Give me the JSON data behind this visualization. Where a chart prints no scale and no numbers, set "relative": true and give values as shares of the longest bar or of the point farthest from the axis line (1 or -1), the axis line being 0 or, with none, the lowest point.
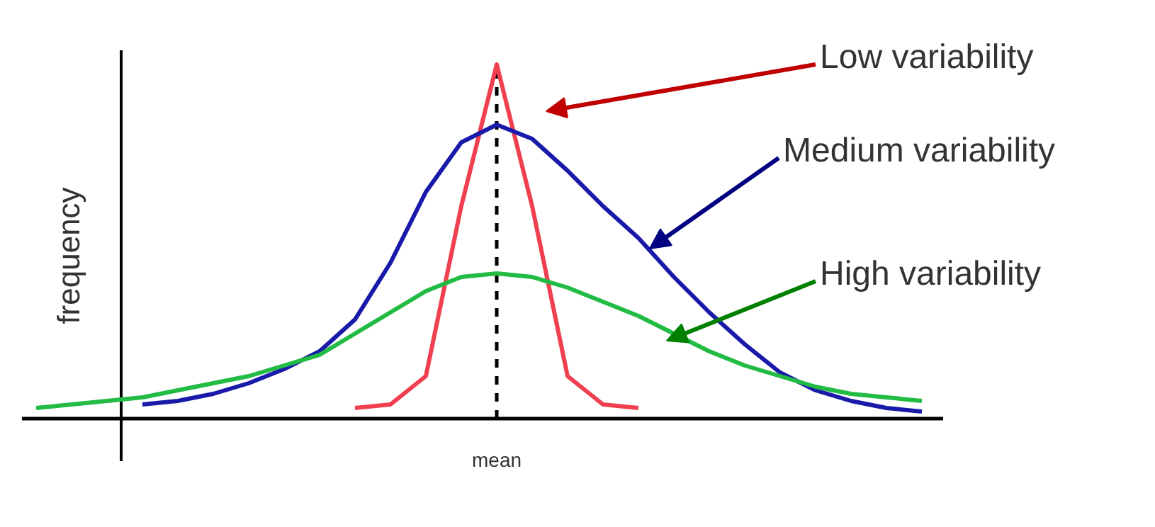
{
  "chart_data": {
    "type": "line",
    "relative": true,
    "ylabel": "frequency",
    "categories": [
      null,
      null,
      null,
      null,
      null,
      null,
      null,
      null,
      null,
      null,
      null,
      null,
      null,
      null,
      null,
      null,
      null,
      null,
      null,
      null,
      null,
      null,
      null,
      null,
      null,
      null
    ],
    "series": [
      {
        "color": "#f04050",
        "values": [
          null,
          null,
          null,
          null,
          null,
          null,
          null,
          null,
          null,
          0.03,
          0.04,
          0.12,
          0.6,
          1,
          0.6,
          0.12,
          0.04,
          0.03,
          null,
          null,
          null,
          null,
          null,
          null,
          null,
          null
        ]
      },
      {
        "color": "#1a1aaa",
        "values": [
          null,
          null,
          null,
          0.04,
          0.05,
          0.07,
          0.1,
          0.14,
          0.19,
          0.28,
          0.44,
          0.64,
          0.78,
          0.83,
          0.79,
          0.7,
          0.6,
          0.51,
          0.4,
          0.3,
          0.21,
          0.13,
          0.08,
          0.05,
          0.03,
          0.02
        ]
      },
      {
        "color": "#22bb44",
        "values": [
          0.03,
          0.04,
          0.05,
          0.06,
          0.08,
          0.1,
          0.12,
          0.15,
          0.18,
          0.24,
          0.3,
          0.36,
          0.4,
          0.41,
          0.4,
          0.37,
          0.33,
          0.29,
          0.24,
          0.19,
          0.15,
          0.12,
          0.09,
          0.07,
          0.06,
          0.05
        ]
      }
    ],
    "annotations": [
      "Low variability",
      "Medium variability",
      "High variability",
      "mean"
    ],
    "line_style": "solid",
    "marker": "none",
    "grid": false
  }
}
